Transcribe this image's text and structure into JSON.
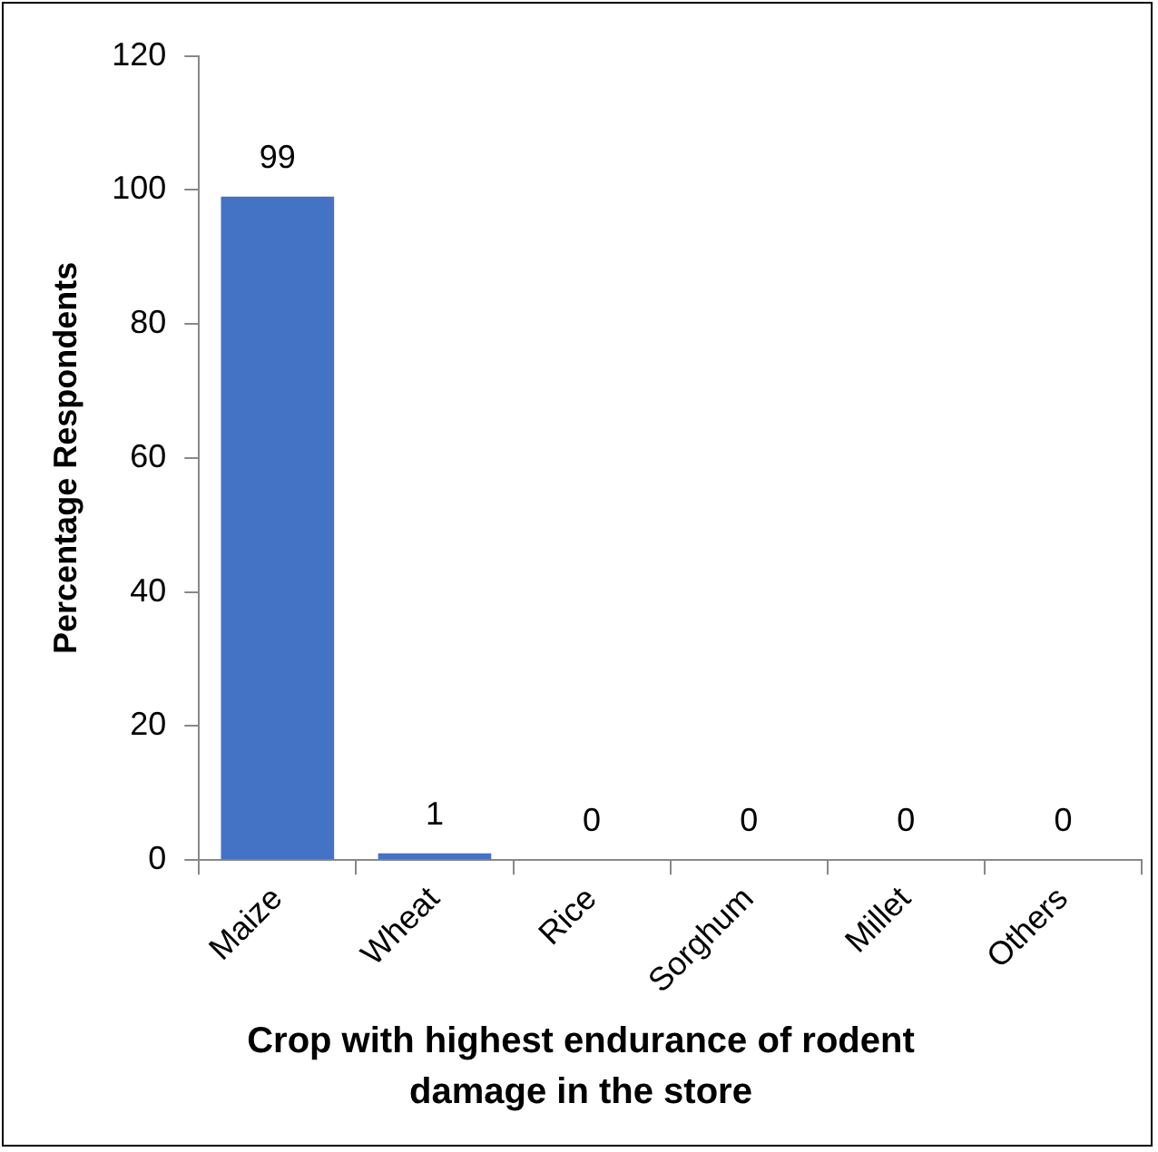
{
  "chart_data": {
    "type": "bar",
    "xlabel": "Crop with highest endurance of rodent damage in the store",
    "ylabel": "Percentage Respondents",
    "categories": [
      "Maize",
      "Wheat",
      "Rice",
      "Sorghum",
      "Millet",
      "Others"
    ],
    "values": [
      99,
      1,
      0,
      0,
      0,
      0
    ],
    "color": "#4472c4",
    "ylim": [
      0,
      120
    ],
    "yticks": [
      0,
      20,
      40,
      60,
      80,
      100,
      120
    ],
    "grid": false,
    "legend": false,
    "data_labels": true
  }
}
